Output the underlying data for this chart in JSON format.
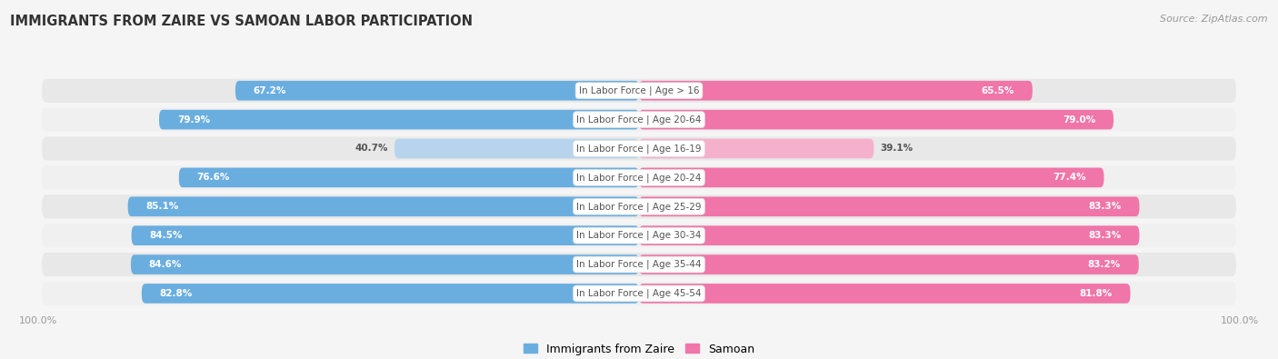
{
  "title": "IMMIGRANTS FROM ZAIRE VS SAMOAN LABOR PARTICIPATION",
  "source": "Source: ZipAtlas.com",
  "categories": [
    "In Labor Force | Age > 16",
    "In Labor Force | Age 20-64",
    "In Labor Force | Age 16-19",
    "In Labor Force | Age 20-24",
    "In Labor Force | Age 25-29",
    "In Labor Force | Age 30-34",
    "In Labor Force | Age 35-44",
    "In Labor Force | Age 45-54"
  ],
  "zaire_values": [
    67.2,
    79.9,
    40.7,
    76.6,
    85.1,
    84.5,
    84.6,
    82.8
  ],
  "samoan_values": [
    65.5,
    79.0,
    39.1,
    77.4,
    83.3,
    83.3,
    83.2,
    81.8
  ],
  "zaire_color": "#6aaee0",
  "zaire_color_light": "#b8d4ed",
  "samoan_color": "#f075a8",
  "samoan_color_light": "#f5b0cc",
  "bar_height": 0.68,
  "row_bg_colors": [
    "#e8e8e8",
    "#f0f0f0",
    "#e8e8e8",
    "#f0f0f0",
    "#e8e8e8",
    "#f0f0f0",
    "#e8e8e8",
    "#f0f0f0"
  ],
  "bg_color": "#f5f5f5",
  "label_color_white": "#ffffff",
  "label_color_dark": "#555555",
  "center_label_color": "#555555",
  "axis_label_color": "#999999",
  "title_color": "#333333",
  "source_color": "#999999",
  "light_row_index": 2
}
